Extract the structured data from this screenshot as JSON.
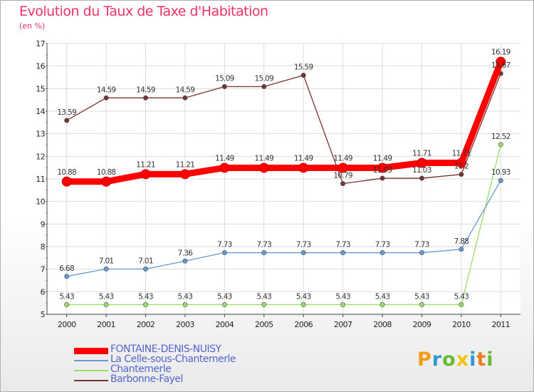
{
  "title": "Evolution du Taux de Taxe d'Habitation",
  "unit": "(en %)",
  "logo": {
    "letters": [
      "P",
      "r",
      "o",
      "x",
      "i",
      "t",
      "i"
    ],
    "colors": [
      "#f39c12",
      "#3399cc",
      "#66bb33",
      "#f1c40f",
      "#3399cc",
      "#e67e22",
      "#66bb33"
    ]
  },
  "chart_data": {
    "type": "line",
    "x": [
      2000,
      2001,
      2002,
      2003,
      2004,
      2005,
      2006,
      2007,
      2008,
      2009,
      2010,
      2011
    ],
    "ylim": [
      5,
      17
    ],
    "yticks": [
      5,
      6,
      7,
      8,
      9,
      10,
      11,
      12,
      13,
      14,
      15,
      16,
      17
    ],
    "grid": true,
    "legend": "bottom-left",
    "series": [
      {
        "name": "FONTAINE-DENIS-NUISY",
        "color": "#ff0000",
        "values": [
          10.88,
          10.88,
          11.21,
          11.21,
          11.49,
          11.49,
          11.49,
          11.49,
          11.49,
          11.71,
          11.71,
          16.19
        ],
        "labels": [
          "10.88",
          "10.88",
          "11.21",
          "11.21",
          "11.49",
          "11.49",
          "11.49",
          "11.49",
          "11.49",
          "11.71",
          "11.71",
          "16.19"
        ]
      },
      {
        "name": "La Celle-sous-Chantemerle",
        "color": "#6699cc",
        "values": [
          6.68,
          7.01,
          7.01,
          7.36,
          7.73,
          7.73,
          7.73,
          7.73,
          7.73,
          7.73,
          7.88,
          10.93
        ],
        "labels": [
          "6.68",
          "7.01",
          "7.01",
          "7.36",
          "7.73",
          "7.73",
          "7.73",
          "7.73",
          "7.73",
          "7.73",
          "7.88",
          "10.93"
        ]
      },
      {
        "name": "Chantemerle",
        "color": "#99dd66",
        "values": [
          5.43,
          5.43,
          5.43,
          5.43,
          5.43,
          5.43,
          5.43,
          5.43,
          5.43,
          5.43,
          5.43,
          12.52
        ],
        "labels": [
          "5.43",
          "5.43",
          "5.43",
          "5.43",
          "5.43",
          "5.43",
          "5.43",
          "5.43",
          "5.43",
          "5.43",
          "5.43",
          "12.52"
        ]
      },
      {
        "name": "Barbonne-Fayel",
        "color": "#773333",
        "values": [
          13.59,
          14.59,
          14.59,
          14.59,
          15.09,
          15.09,
          15.59,
          10.79,
          11.03,
          11.03,
          11.2,
          15.67
        ],
        "labels": [
          "13.59",
          "14.59",
          "14.59",
          "14.59",
          "15.09",
          "15.09",
          "15.59",
          "10.79",
          "11.03",
          "11.03",
          "11.2",
          "15.67"
        ]
      }
    ]
  }
}
